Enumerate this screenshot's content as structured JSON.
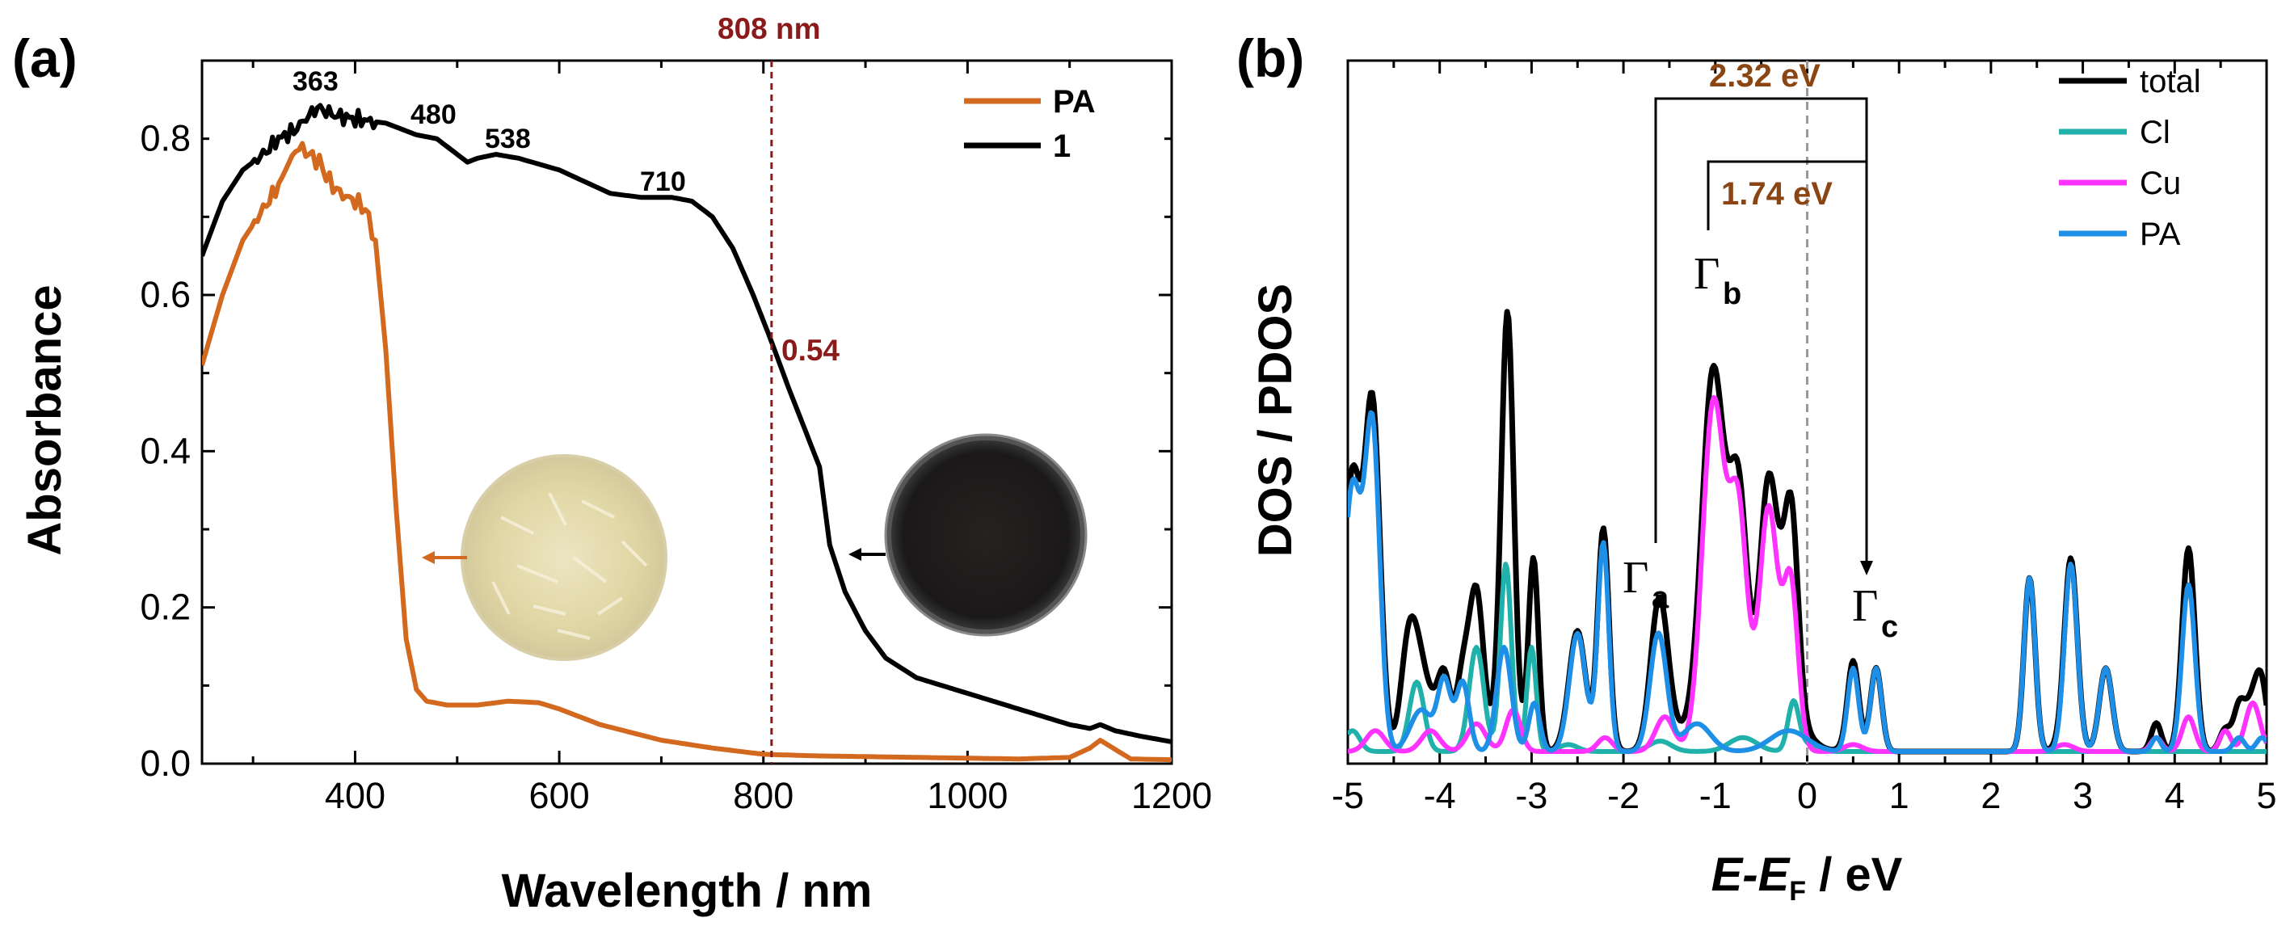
{
  "chart_data": [
    {
      "panel": "(a)",
      "type": "line",
      "xlabel": "Wavelength / nm",
      "ylabel": "Absorbance",
      "xlim": [
        250,
        1200
      ],
      "ylim": [
        0,
        0.9
      ],
      "xticks": [
        400,
        600,
        800,
        1000,
        1200
      ],
      "yticks": [
        0.0,
        0.2,
        0.4,
        0.6,
        0.8
      ],
      "xtick_labels": [
        "400",
        "600",
        "800",
        "1000",
        "1200"
      ],
      "ytick_labels": [
        "0.0",
        "0.2",
        "0.4",
        "0.6",
        "0.8"
      ],
      "series": [
        {
          "name": "PA",
          "color": "#d2691e",
          "points": [
            [
              250,
              0.51
            ],
            [
              270,
              0.6
            ],
            [
              290,
              0.67
            ],
            [
              310,
              0.71
            ],
            [
              325,
              0.74
            ],
            [
              335,
              0.77
            ],
            [
              345,
              0.79
            ],
            [
              355,
              0.78
            ],
            [
              365,
              0.77
            ],
            [
              375,
              0.745
            ],
            [
              385,
              0.73
            ],
            [
              400,
              0.72
            ],
            [
              410,
              0.71
            ],
            [
              420,
              0.67
            ],
            [
              430,
              0.53
            ],
            [
              440,
              0.33
            ],
            [
              450,
              0.16
            ],
            [
              460,
              0.095
            ],
            [
              470,
              0.08
            ],
            [
              490,
              0.075
            ],
            [
              520,
              0.075
            ],
            [
              550,
              0.08
            ],
            [
              580,
              0.078
            ],
            [
              600,
              0.07
            ],
            [
              640,
              0.05
            ],
            [
              700,
              0.03
            ],
            [
              750,
              0.02
            ],
            [
              800,
              0.012
            ],
            [
              850,
              0.01
            ],
            [
              950,
              0.008
            ],
            [
              1050,
              0.006
            ],
            [
              1100,
              0.008
            ],
            [
              1120,
              0.02
            ],
            [
              1130,
              0.03
            ],
            [
              1140,
              0.022
            ],
            [
              1160,
              0.006
            ],
            [
              1200,
              0.005
            ]
          ]
        },
        {
          "name": "1",
          "color": "#000000",
          "points": [
            [
              250,
              0.65
            ],
            [
              270,
              0.72
            ],
            [
              290,
              0.76
            ],
            [
              310,
              0.78
            ],
            [
              325,
              0.8
            ],
            [
              340,
              0.81
            ],
            [
              355,
              0.83
            ],
            [
              363,
              0.84
            ],
            [
              380,
              0.83
            ],
            [
              400,
              0.825
            ],
            [
              430,
              0.82
            ],
            [
              460,
              0.805
            ],
            [
              480,
              0.8
            ],
            [
              500,
              0.78
            ],
            [
              510,
              0.77
            ],
            [
              520,
              0.775
            ],
            [
              538,
              0.78
            ],
            [
              560,
              0.775
            ],
            [
              600,
              0.76
            ],
            [
              650,
              0.73
            ],
            [
              680,
              0.725
            ],
            [
              710,
              0.725
            ],
            [
              730,
              0.72
            ],
            [
              750,
              0.7
            ],
            [
              770,
              0.66
            ],
            [
              790,
              0.6
            ],
            [
              808,
              0.54
            ],
            [
              825,
              0.48
            ],
            [
              840,
              0.43
            ],
            [
              855,
              0.38
            ],
            [
              865,
              0.28
            ],
            [
              880,
              0.22
            ],
            [
              900,
              0.17
            ],
            [
              920,
              0.135
            ],
            [
              950,
              0.11
            ],
            [
              1000,
              0.09
            ],
            [
              1050,
              0.07
            ],
            [
              1100,
              0.05
            ],
            [
              1120,
              0.045
            ],
            [
              1130,
              0.05
            ],
            [
              1145,
              0.042
            ],
            [
              1170,
              0.035
            ],
            [
              1200,
              0.028
            ]
          ]
        }
      ],
      "peak_labels": [
        {
          "text": "363",
          "x": 363,
          "y": 0.855
        },
        {
          "text": "480",
          "x": 480,
          "y": 0.815
        },
        {
          "text": "538",
          "x": 538,
          "y": 0.795
        },
        {
          "text": "710",
          "x": 710,
          "y": 0.74
        }
      ],
      "vline": {
        "x": 808,
        "label": "808 nm",
        "value_label": "0.54",
        "value": 0.54,
        "color": "#8b1a1a"
      },
      "legend": {
        "position": "top-right",
        "entries": [
          "PA",
          "1"
        ]
      },
      "insets": [
        {
          "name": "PA-powder-photo",
          "description_color": "#e8e0b8",
          "arrow": "left"
        },
        {
          "name": "compound-1-powder-photo",
          "description_color": "#1c1c1c",
          "arrow": "left"
        }
      ]
    },
    {
      "panel": "(b)",
      "type": "line",
      "xlabel_main": "E-E",
      "xlabel_sub": "F",
      "xlabel_unit": " / eV",
      "ylabel": "DOS / PDOS",
      "xlim": [
        -5,
        5
      ],
      "ylim": [
        0,
        1
      ],
      "xticks": [
        -5,
        -4,
        -3,
        -2,
        -1,
        0,
        1,
        2,
        3,
        4,
        5
      ],
      "xtick_labels": [
        "-5",
        "-4",
        "-3",
        "-2",
        "-1",
        "0",
        "1",
        "2",
        "3",
        "4",
        "5"
      ],
      "series": [
        {
          "name": "total",
          "color": "#000000"
        },
        {
          "name": "Cl",
          "color": "#20b2aa"
        },
        {
          "name": "Cu",
          "color": "#ff33ff"
        },
        {
          "name": "PA",
          "color": "#1e8fe6"
        }
      ],
      "peaks": {
        "PA": [
          [
            -4.95,
            0.38,
            0.1
          ],
          [
            -4.73,
            0.45,
            0.08
          ],
          [
            -4.2,
            0.06,
            0.12
          ],
          [
            -3.95,
            0.1,
            0.07
          ],
          [
            -3.75,
            0.1,
            0.07
          ],
          [
            -3.3,
            0.15,
            0.08
          ],
          [
            -2.97,
            0.07,
            0.06
          ],
          [
            -2.5,
            0.17,
            0.09
          ],
          [
            -2.22,
            0.3,
            0.06
          ],
          [
            -1.62,
            0.17,
            0.09
          ],
          [
            -1.2,
            0.04,
            0.15
          ],
          [
            -0.2,
            0.03,
            0.2
          ],
          [
            0.5,
            0.12,
            0.06
          ],
          [
            0.75,
            0.12,
            0.06
          ],
          [
            2.42,
            0.25,
            0.06
          ],
          [
            2.87,
            0.27,
            0.07
          ],
          [
            3.25,
            0.12,
            0.07
          ],
          [
            3.8,
            0.02,
            0.05
          ],
          [
            4.15,
            0.24,
            0.07
          ],
          [
            4.7,
            0.02,
            0.06
          ],
          [
            4.95,
            0.02,
            0.06
          ]
        ],
        "Cl": [
          [
            -4.95,
            0.03,
            0.08
          ],
          [
            -4.25,
            0.1,
            0.08
          ],
          [
            -3.6,
            0.15,
            0.08
          ],
          [
            -3.28,
            0.27,
            0.06
          ],
          [
            -3.0,
            0.15,
            0.05
          ],
          [
            -2.6,
            0.01,
            0.1
          ],
          [
            -1.6,
            0.015,
            0.12
          ],
          [
            -0.7,
            0.02,
            0.15
          ],
          [
            -0.15,
            0.07,
            0.06
          ],
          [
            0.0,
            0.01,
            0.1
          ]
        ],
        "Cu": [
          [
            -4.7,
            0.03,
            0.1
          ],
          [
            -4.1,
            0.03,
            0.1
          ],
          [
            -3.6,
            0.04,
            0.1
          ],
          [
            -3.2,
            0.06,
            0.08
          ],
          [
            -2.2,
            0.02,
            0.08
          ],
          [
            -1.55,
            0.05,
            0.1
          ],
          [
            -1.02,
            0.5,
            0.12
          ],
          [
            -0.75,
            0.34,
            0.1
          ],
          [
            -0.42,
            0.35,
            0.1
          ],
          [
            -0.18,
            0.24,
            0.08
          ],
          [
            0.5,
            0.01,
            0.1
          ],
          [
            2.8,
            0.01,
            0.1
          ],
          [
            3.8,
            0.02,
            0.06
          ],
          [
            4.15,
            0.05,
            0.07
          ],
          [
            4.55,
            0.03,
            0.06
          ],
          [
            4.85,
            0.07,
            0.08
          ]
        ],
        "extra_total": [
          [
            -4.35,
            0.15,
            0.08
          ],
          [
            -3.6,
            0.12,
            0.07
          ],
          [
            -3.25,
            0.38,
            0.06
          ],
          [
            -2.97,
            0.16,
            0.05
          ],
          [
            -0.25,
            0.05,
            0.1
          ],
          [
            4.7,
            0.05,
            0.06
          ],
          [
            4.95,
            0.07,
            0.06
          ]
        ]
      },
      "annotations": [
        {
          "text": "2.32 eV",
          "from": -1.65,
          "to": 0.65,
          "color": "#8b4513"
        },
        {
          "text": "1.74 eV",
          "from": -1.08,
          "to": 0.65,
          "color": "#8b4513"
        }
      ],
      "gamma_labels": [
        {
          "symbol": "Γ",
          "sub": "a",
          "x": -1.65
        },
        {
          "symbol": "Γ",
          "sub": "b",
          "x": -1.05
        },
        {
          "symbol": "Γ",
          "sub": "c",
          "x": 0.65
        }
      ],
      "fermi_line": {
        "x": 0,
        "style": "dashed",
        "color": "#999999"
      },
      "legend": {
        "position": "top-right",
        "entries": [
          "total",
          "Cl",
          "Cu",
          "PA"
        ]
      }
    }
  ]
}
